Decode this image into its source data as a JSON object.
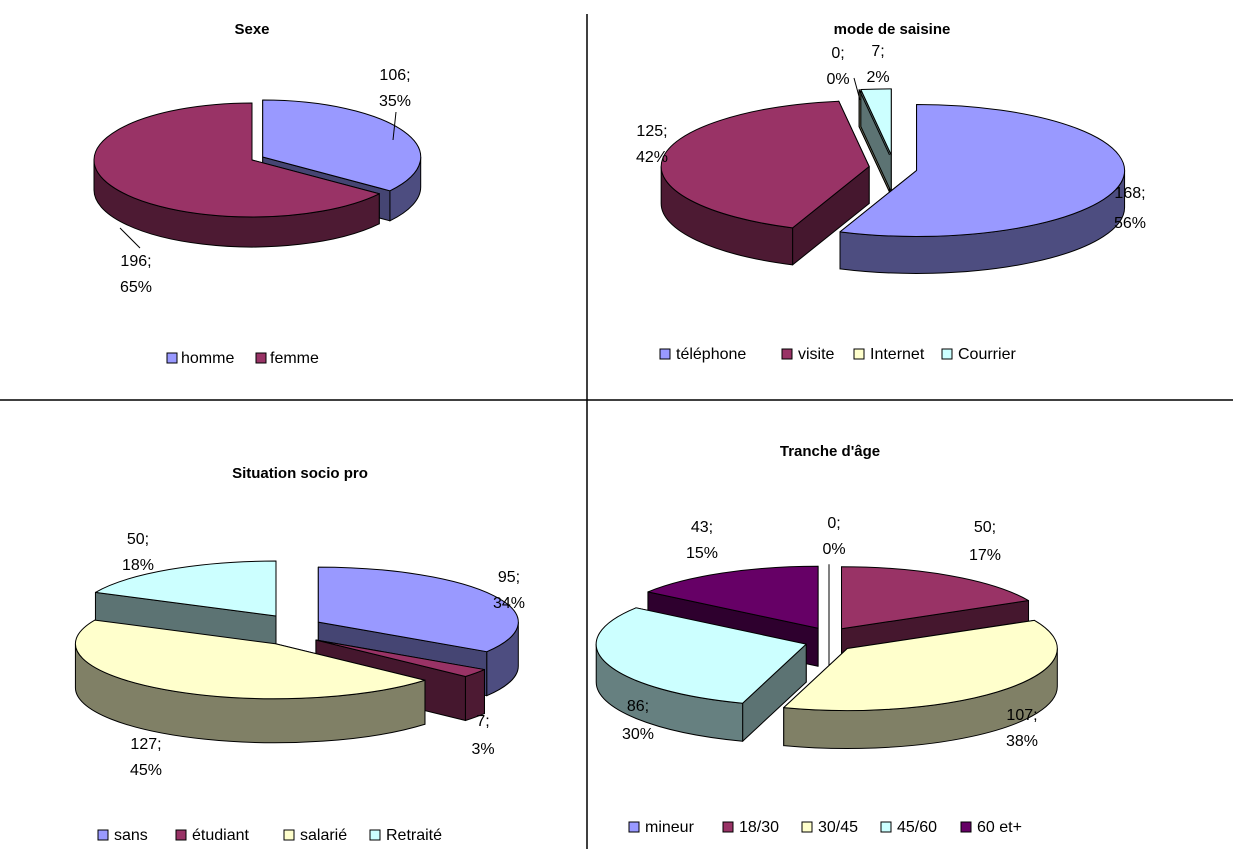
{
  "chart_data": [
    {
      "type": "pie",
      "title": "Sexe",
      "categories": [
        "homme",
        "femme"
      ],
      "values": [
        106,
        196
      ],
      "percent_labels": [
        "35%",
        "65%"
      ],
      "value_labels": [
        "106;",
        "196;"
      ],
      "colors": [
        "#9999ff",
        "#993366"
      ],
      "explode": [
        1,
        0
      ],
      "legend": "bottom",
      "legend_labels": [
        "homme",
        "femme"
      ]
    },
    {
      "type": "pie",
      "title": "mode de saisine",
      "categories": [
        "téléphone",
        "visite",
        "Internet",
        "Courrier"
      ],
      "values": [
        168,
        125,
        0,
        7
      ],
      "percent_labels": [
        "56%",
        "42%",
        "0%",
        "2%"
      ],
      "value_labels": [
        "168;",
        "125;",
        "0;",
        "7;"
      ],
      "colors": [
        "#9999ff",
        "#993366",
        "#ffffcc",
        "#ccffff"
      ],
      "explode": [
        1,
        1,
        1,
        1
      ],
      "legend": "bottom",
      "legend_labels": [
        "téléphone",
        "visite",
        "Internet",
        "Courrier"
      ]
    },
    {
      "type": "pie",
      "title": "Situation socio pro",
      "categories": [
        "sans",
        "étudiant",
        "salarié",
        "Retraité"
      ],
      "values": [
        95,
        7,
        127,
        50
      ],
      "percent_labels": [
        "34%",
        "3%",
        "45%",
        "18%"
      ],
      "value_labels": [
        "95;",
        "7;",
        "127;",
        "50;"
      ],
      "colors": [
        "#9999ff",
        "#993366",
        "#ffffcc",
        "#ccffff"
      ],
      "explode": [
        1,
        1,
        1,
        1
      ],
      "legend": "bottom",
      "legend_labels": [
        "sans",
        "étudiant",
        "salarié",
        "Retraité"
      ]
    },
    {
      "type": "pie",
      "title": "Tranche d'âge",
      "categories": [
        "mineur",
        "18/30",
        "30/45",
        "45/60",
        "60 et+"
      ],
      "values": [
        0,
        50,
        107,
        86,
        43
      ],
      "percent_labels": [
        "0%",
        "17%",
        "38%",
        "30%",
        "15%"
      ],
      "value_labels": [
        "0;",
        "50;",
        "107;",
        "86;",
        "43;"
      ],
      "colors": [
        "#9999ff",
        "#993366",
        "#ffffcc",
        "#ccffff",
        "#660066"
      ],
      "explode": [
        1,
        1,
        1,
        1,
        1
      ],
      "legend": "bottom",
      "legend_labels": [
        "mineur",
        "18/30",
        "30/45",
        "45/60",
        "60 et+"
      ]
    }
  ]
}
